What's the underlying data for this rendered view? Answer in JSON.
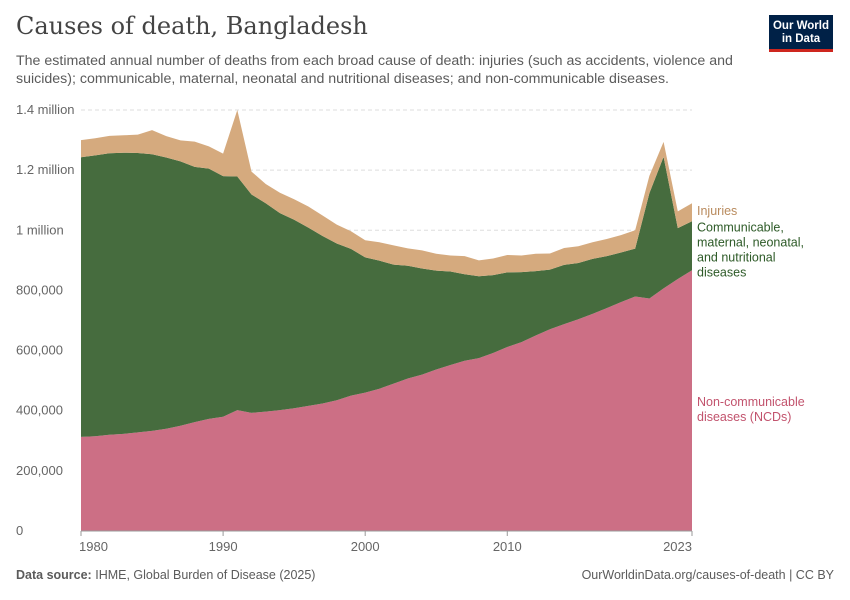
{
  "header": {
    "title": "Causes of death, Bangladesh",
    "subtitle": "The estimated annual number of deaths from each broad cause of death: injuries (such as accidents, violence and suicides); communicable, maternal, neonatal and nutritional diseases; and non-communicable diseases.",
    "logo_line1": "Our World",
    "logo_line2": "in Data"
  },
  "footer": {
    "source_label": "Data source:",
    "source_text": "IHME, Global Burden of Disease (2025)",
    "url_text": "OurWorldinData.org/causes-of-death | CC BY"
  },
  "colors": {
    "ncd": "#cc6f85",
    "communicable": "#466c3e",
    "injuries": "#d5aa7e",
    "injuries_label": "#b98b5e",
    "communicable_label": "#2d5a27",
    "ncd_label": "#c2536d",
    "grid": "#dddddd"
  },
  "chart_data": {
    "type": "area",
    "stacked": true,
    "title": "Causes of death, Bangladesh",
    "ylim": [
      0,
      1400000
    ],
    "yticks": [
      {
        "value": 0,
        "label": "0"
      },
      {
        "value": 200000,
        "label": "200,000"
      },
      {
        "value": 400000,
        "label": "400,000"
      },
      {
        "value": 600000,
        "label": "600,000"
      },
      {
        "value": 800000,
        "label": "800,000"
      },
      {
        "value": 1000000,
        "label": "1 million"
      },
      {
        "value": 1200000,
        "label": "1.2 million"
      },
      {
        "value": 1400000,
        "label": "1.4 million"
      }
    ],
    "xticks": [
      {
        "value": 1980,
        "label": "1980"
      },
      {
        "value": 1990,
        "label": "1990"
      },
      {
        "value": 2000,
        "label": "2000"
      },
      {
        "value": 2010,
        "label": "2010"
      },
      {
        "value": 2023,
        "label": "2023"
      }
    ],
    "x": [
      1980,
      1981,
      1982,
      1983,
      1984,
      1985,
      1986,
      1987,
      1988,
      1989,
      1990,
      1991,
      1992,
      1993,
      1994,
      1995,
      1996,
      1997,
      1998,
      1999,
      2000,
      2001,
      2002,
      2003,
      2004,
      2005,
      2006,
      2007,
      2008,
      2009,
      2010,
      2011,
      2012,
      2013,
      2014,
      2015,
      2016,
      2017,
      2018,
      2019,
      2020,
      2021,
      2022,
      2023
    ],
    "series": [
      {
        "name": "Non-communicable diseases (NCDs)",
        "label_lines": [
          "Non-communicable",
          "diseases (NCDs)"
        ],
        "color_key": "ncd",
        "values": [
          313000,
          315000,
          320000,
          323000,
          328000,
          333000,
          340000,
          350000,
          362000,
          373000,
          380000,
          402000,
          393000,
          397000,
          402000,
          408000,
          416000,
          424000,
          435000,
          450000,
          460000,
          473000,
          490000,
          507000,
          520000,
          537000,
          552000,
          566000,
          575000,
          592000,
          612000,
          628000,
          650000,
          671000,
          688000,
          704000,
          722000,
          741000,
          761000,
          780000,
          773000,
          807000,
          838000,
          867000
        ]
      },
      {
        "name": "Communicable, maternal, neonatal, and nutritional diseases",
        "label_lines": [
          "Communicable,",
          "maternal, neonatal,",
          "and nutritional",
          "diseases"
        ],
        "color_key": "communicable",
        "values": [
          930000,
          934000,
          936000,
          935000,
          929000,
          920000,
          902000,
          879000,
          849000,
          832000,
          800000,
          777000,
          726000,
          693000,
          655000,
          627000,
          593000,
          557000,
          521000,
          488000,
          450000,
          426000,
          396000,
          375000,
          353000,
          329000,
          311000,
          288000,
          272000,
          259000,
          248000,
          233000,
          214000,
          198000,
          197000,
          187000,
          183000,
          173000,
          165000,
          159000,
          350000,
          437000,
          169000,
          163000
        ]
      },
      {
        "name": "Injuries",
        "label_lines": [
          "Injuries"
        ],
        "color_key": "injuries",
        "values": [
          57000,
          57000,
          58000,
          58000,
          61000,
          80000,
          71000,
          70000,
          84000,
          74000,
          75000,
          221000,
          76000,
          64000,
          68000,
          68000,
          70000,
          68000,
          63000,
          59000,
          57000,
          61000,
          64000,
          58000,
          60000,
          56000,
          53000,
          60000,
          53000,
          55000,
          58000,
          55000,
          58000,
          54000,
          56000,
          56000,
          55000,
          57000,
          58000,
          61000,
          58000,
          50000,
          56000,
          60000
        ]
      }
    ]
  }
}
